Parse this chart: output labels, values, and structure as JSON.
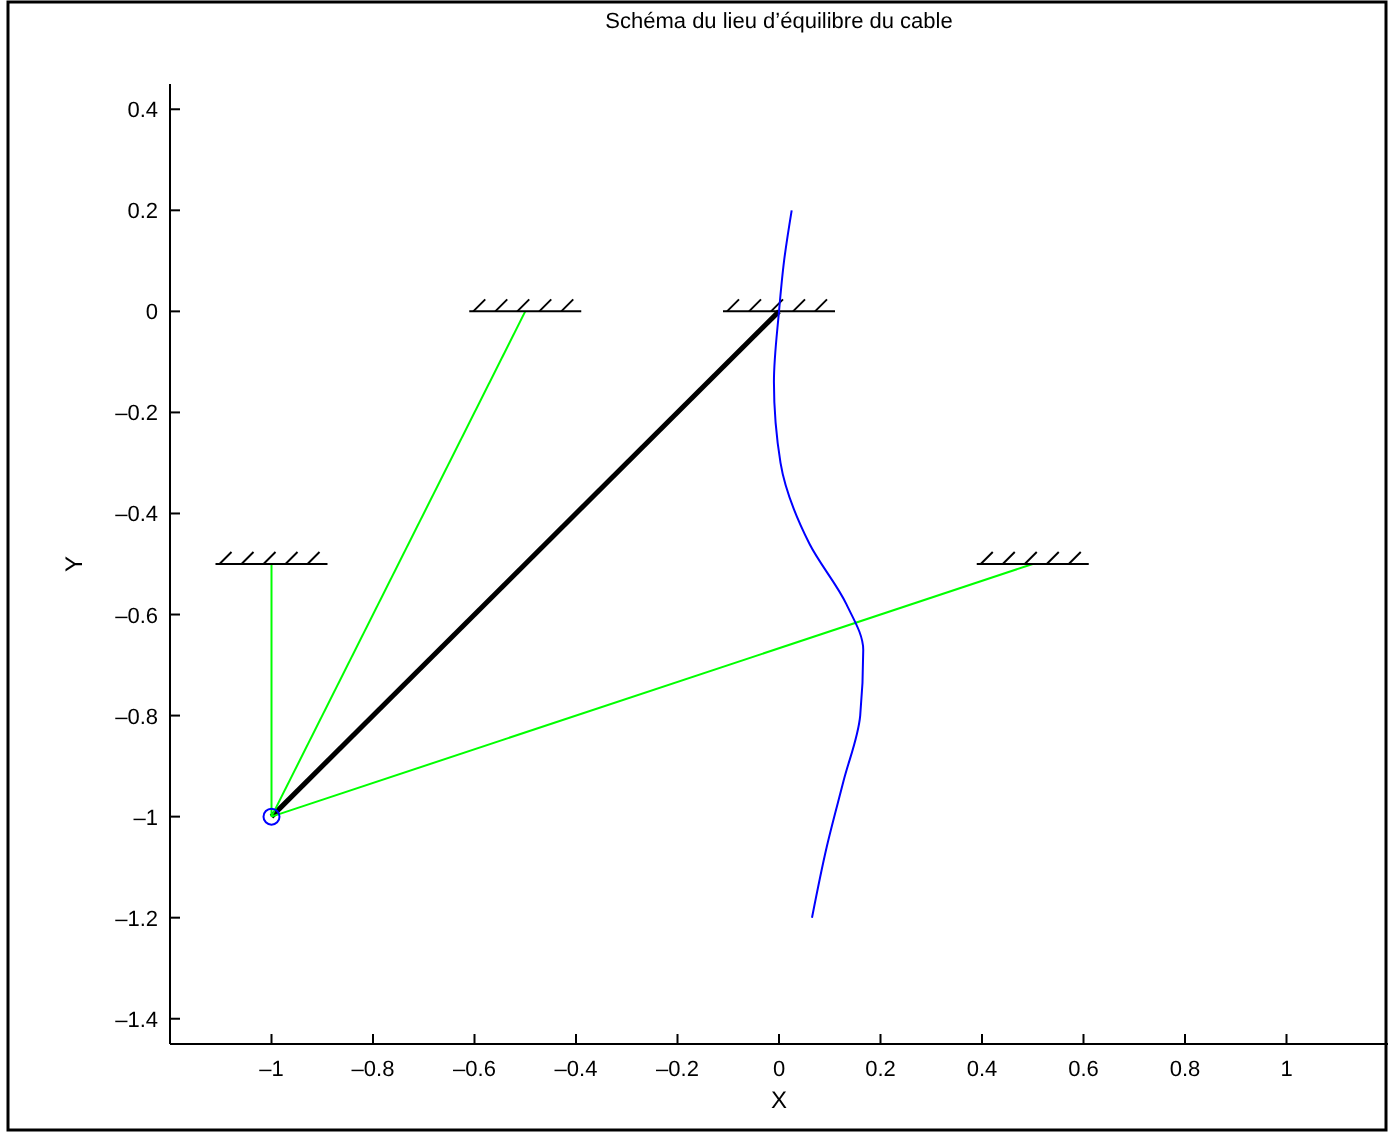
{
  "chart_data": {
    "type": "line",
    "title": "Schéma du lieu d’équilibre du cable",
    "xlabel": "X",
    "ylabel": "Y",
    "xlim": [
      -1.2,
      1.2
    ],
    "ylim": [
      -1.45,
      0.45
    ],
    "xticks": [
      {
        "value": -1,
        "label": "–1"
      },
      {
        "value": -0.8,
        "label": "–0.8"
      },
      {
        "value": -0.6,
        "label": "–0.6"
      },
      {
        "value": -0.4,
        "label": "–0.4"
      },
      {
        "value": -0.2,
        "label": "–0.2"
      },
      0,
      0.2,
      0.4,
      0.6,
      0.8,
      1
    ],
    "yticks": [
      {
        "value": -1.4,
        "label": "–1.4"
      },
      {
        "value": -1.2,
        "label": "–1.2"
      },
      {
        "value": -1,
        "label": "–1"
      },
      {
        "value": -0.8,
        "label": "–0.8"
      },
      {
        "value": -0.6,
        "label": "–0.6"
      },
      {
        "value": -0.4,
        "label": "–0.4"
      },
      {
        "value": -0.2,
        "label": "–0.2"
      },
      0,
      0.2,
      0.4
    ],
    "grid": false,
    "series": [
      {
        "color": "#000000",
        "x": [
          -1,
          0
        ],
        "values": [
          -1,
          0
        ]
      },
      {
        "color": "#00ff00",
        "x": [
          -1,
          -1
        ],
        "values": [
          -1,
          -0.5
        ]
      },
      {
        "color": "#00ff00",
        "x": [
          -1,
          -0.5
        ],
        "values": [
          -1,
          0
        ]
      },
      {
        "color": "#00ff00",
        "x": [
          -1,
          0.5
        ],
        "values": [
          -1,
          -0.5
        ]
      },
      {
        "color": "#0000ff",
        "x": [
          0.025,
          0.01,
          0,
          -0.01,
          0.003,
          0.06,
          0.133,
          0.166,
          0.16,
          0.127,
          0.094,
          0.065
        ],
        "values": [
          0.2,
          0.1,
          0,
          -0.14,
          -0.3,
          -0.46,
          -0.58,
          -0.67,
          -0.8,
          -0.93,
          -1.06,
          -1.2
        ]
      },
      {
        "type": "scatter",
        "marker": "circle",
        "color": "#0000ff",
        "x": [
          -1
        ],
        "values": [
          -1
        ]
      }
    ]
  }
}
